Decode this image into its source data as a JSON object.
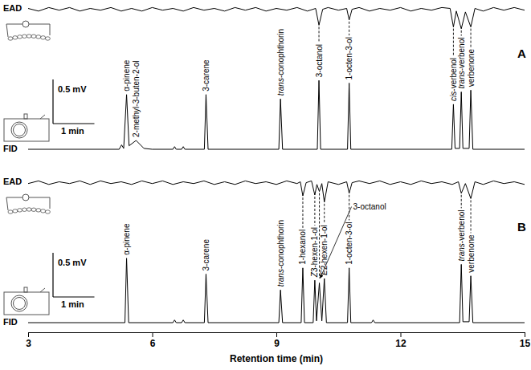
{
  "chart_data": {
    "type": "line",
    "color": "#000000",
    "x_label": "Retention time (min)",
    "xlim": [
      3,
      15
    ],
    "xticks": [
      3,
      6,
      9,
      12,
      15
    ],
    "panels": [
      {
        "label": "A",
        "traces": [
          {
            "name": "EAD",
            "ylim": [
              -0.3,
              0.06
            ],
            "x": [
              3,
              3.25,
              3.5,
              3.75,
              4,
              4.25,
              4.5,
              4.75,
              5,
              5.25,
              5.5,
              5.75,
              6,
              6.25,
              6.5,
              6.75,
              7,
              7.25,
              7.5,
              7.75,
              8,
              8.25,
              8.5,
              8.75,
              9,
              9.25,
              9.5,
              9.75,
              9.95,
              10.03,
              10.12,
              10.25,
              10.5,
              10.7,
              10.76,
              10.83,
              11,
              11.25,
              11.5,
              11.75,
              12,
              12.25,
              12.5,
              12.75,
              13,
              13.2,
              13.28,
              13.35,
              13.47,
              13.57,
              13.7,
              13.8,
              14,
              14.25,
              14.5,
              14.75,
              15
            ],
            "values": [
              0.01,
              -0.02,
              0.02,
              -0.01,
              0.02,
              -0.02,
              0.01,
              -0.01,
              0.02,
              -0.02,
              0.01,
              -0.02,
              0.02,
              -0.01,
              0.01,
              -0.02,
              0.02,
              -0.01,
              0.01,
              -0.02,
              0.02,
              -0.01,
              0.02,
              -0.02,
              0.01,
              -0.01,
              0.02,
              -0.02,
              0.01,
              -0.18,
              0.0,
              0.02,
              -0.01,
              0.01,
              -0.12,
              0.0,
              0.02,
              -0.02,
              0.01,
              -0.01,
              0.02,
              -0.02,
              0.01,
              -0.01,
              0.02,
              0.01,
              -0.2,
              -0.02,
              -0.22,
              -0.03,
              -0.2,
              0.01,
              -0.02,
              0.02,
              -0.01,
              0.02,
              -0.01
            ]
          },
          {
            "name": "FID",
            "ylim": [
              0,
              0.95
            ],
            "x": [
              3,
              5.2,
              5.26,
              5.31,
              5.38,
              5.44,
              5.61,
              5.8,
              6.0,
              6.5,
              6.54,
              6.58,
              6.71,
              6.75,
              6.79,
              7.26,
              7.3,
              7.35,
              9.06,
              9.1,
              9.15,
              9.99,
              10.03,
              10.07,
              10.72,
              10.76,
              10.8,
              13.24,
              13.28,
              13.32,
              13.43,
              13.47,
              13.51,
              13.66,
              13.7,
              13.75,
              15
            ],
            "values": [
              0,
              0,
              0.05,
              0.01,
              0.62,
              0.04,
              0.1,
              0.01,
              0,
              0,
              0.03,
              0,
              0,
              0.03,
              0,
              0,
              0.62,
              0,
              0,
              0.57,
              0,
              0,
              0.78,
              0,
              0,
              0.75,
              0,
              0,
              0.51,
              0.01,
              0.01,
              0.65,
              0.01,
              0.01,
              0.67,
              0,
              0
            ]
          }
        ],
        "annotations": [
          {
            "text": "α-pinene",
            "x": 5.38,
            "y": 0.62
          },
          {
            "text": "2-methyl-3-buten-2-ol",
            "x": 5.61,
            "y": 0.1
          },
          {
            "text": "3-carene",
            "x": 7.3,
            "y": 0.62
          },
          {
            "text": "trans-conophthorin",
            "x": 9.1,
            "y": 0.57
          },
          {
            "text": "3-octanol",
            "x": 10.03,
            "y": 0.78
          },
          {
            "text": "1-octen-3-ol",
            "x": 10.76,
            "y": 0.75
          },
          {
            "text": "cis-verbenol",
            "x": 13.28,
            "y": 0.51
          },
          {
            "text": "trans-verbenol",
            "x": 13.47,
            "y": 0.65
          },
          {
            "text": "verbenone",
            "x": 13.7,
            "y": 0.67
          }
        ],
        "callouts": [],
        "responses": [
          10.03,
          10.76,
          13.28,
          13.47,
          13.7
        ],
        "scale_bar": {
          "x": 1,
          "x_label": "1 min",
          "y": 0.5,
          "y_label": "0.5 mV"
        }
      },
      {
        "label": "B",
        "traces": [
          {
            "name": "EAD",
            "ylim": [
              -0.3,
              0.06
            ],
            "x": [
              3,
              3.25,
              3.5,
              3.75,
              4,
              4.25,
              4.5,
              4.75,
              5,
              5.25,
              5.5,
              5.75,
              6,
              6.25,
              6.5,
              6.75,
              7,
              7.25,
              7.5,
              7.75,
              8,
              8.25,
              8.5,
              8.75,
              9,
              9.25,
              9.5,
              9.58,
              9.64,
              9.72,
              9.85,
              9.93,
              9.98,
              10.04,
              10.1,
              10.16,
              10.25,
              10.5,
              10.7,
              10.76,
              10.83,
              11,
              11.25,
              11.5,
              11.75,
              12,
              12.25,
              12.5,
              12.75,
              13,
              13.25,
              13.4,
              13.47,
              13.57,
              13.7,
              13.8,
              14,
              14.25,
              14.5,
              14.75,
              15
            ],
            "values": [
              -0.01,
              0.02,
              -0.02,
              0.01,
              -0.01,
              0.02,
              -0.02,
              0.02,
              -0.01,
              0.01,
              -0.02,
              0.02,
              -0.01,
              0.02,
              -0.02,
              0.01,
              -0.01,
              0.02,
              -0.02,
              0.01,
              -0.02,
              0.02,
              -0.01,
              0.01,
              -0.02,
              0.02,
              -0.01,
              0.01,
              -0.15,
              0.0,
              0.02,
              -0.14,
              -0.02,
              -0.1,
              -0.01,
              -0.22,
              0.01,
              -0.02,
              0.01,
              -0.12,
              0.0,
              0.02,
              -0.01,
              0.02,
              -0.02,
              0.01,
              -0.02,
              0.02,
              -0.01,
              0.01,
              -0.02,
              0.01,
              -0.12,
              -0.01,
              -0.18,
              0.01,
              -0.02,
              0.02,
              -0.01,
              0.01,
              -0.02
            ]
          },
          {
            "name": "FID",
            "ylim": [
              0,
              0.95
            ],
            "x": [
              3,
              5.34,
              5.38,
              5.43,
              6.5,
              6.54,
              6.58,
              6.71,
              6.75,
              6.79,
              7.26,
              7.3,
              7.35,
              9.06,
              9.1,
              9.15,
              9.6,
              9.64,
              9.68,
              9.89,
              9.93,
              9.97,
              10.04,
              10.1,
              10.16,
              10.21,
              10.72,
              10.76,
              10.8,
              11.3,
              11.34,
              11.38,
              13.43,
              13.47,
              13.51,
              13.66,
              13.7,
              13.75,
              15
            ],
            "values": [
              0,
              0,
              0.73,
              0,
              0,
              0.03,
              0,
              0,
              0.03,
              0,
              0,
              0.55,
              0,
              0,
              0.37,
              0,
              0,
              0.62,
              0,
              0,
              0.48,
              0.02,
              0.45,
              0.02,
              0.5,
              0,
              0,
              0.62,
              0,
              0,
              0.03,
              0,
              0,
              0.66,
              0.01,
              0.01,
              0.53,
              0,
              0
            ]
          }
        ],
        "annotations": [
          {
            "text": "α-pinene",
            "x": 5.38,
            "y": 0.73
          },
          {
            "text": "3-carene",
            "x": 7.3,
            "y": 0.55
          },
          {
            "text": "trans-conophthorin",
            "x": 9.1,
            "y": 0.37
          },
          {
            "text": "1-hexanol",
            "x": 9.64,
            "y": 0.62
          },
          {
            "text": "Z3-hexen-1-ol",
            "x": 9.93,
            "y": 0.48
          },
          {
            "text": "E2-hexen-1-ol",
            "x": 10.16,
            "y": 0.5
          },
          {
            "text": "1-octen-3-ol",
            "x": 10.76,
            "y": 0.62
          },
          {
            "text": "trans-verbenol",
            "x": 13.47,
            "y": 0.66
          },
          {
            "text": "verbenone",
            "x": 13.7,
            "y": 0.53
          }
        ],
        "callouts": [
          {
            "text": "3-octanol",
            "x": 10.04,
            "y": 0.45
          }
        ],
        "responses": [
          9.64,
          9.93,
          10.04,
          10.16,
          10.76,
          13.47,
          13.7
        ],
        "scale_bar": {
          "x": 1,
          "x_label": "1 min",
          "y": 0.5,
          "y_label": "0.5 mV"
        }
      }
    ]
  }
}
